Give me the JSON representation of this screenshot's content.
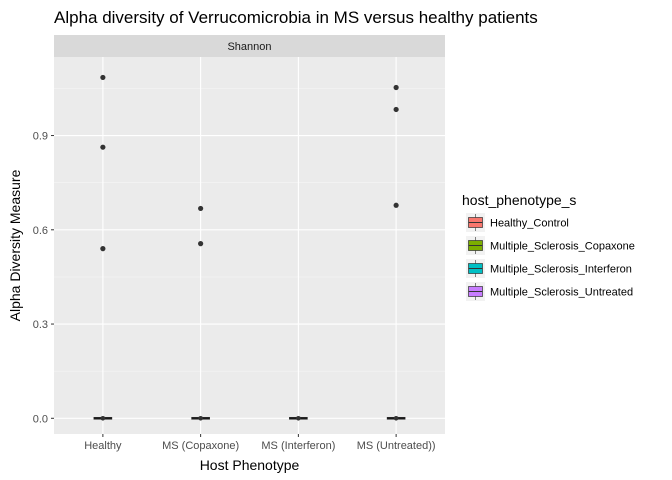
{
  "chart_data": {
    "type": "box",
    "title": "Alpha diversity of Verrucomicrobia in MS versus healthy patients",
    "facet_label": "Shannon",
    "xlabel": "Host Phenotype",
    "ylabel": "Alpha Diversity Measure",
    "categories": [
      "Healthy",
      "MS (Copaxone)",
      "MS (Interferon)",
      "MS (Untreated))"
    ],
    "yticks": [
      0.0,
      0.3,
      0.6,
      0.9
    ],
    "ytick_labels": [
      "0.0",
      "0.3",
      "0.6",
      "0.9"
    ],
    "ylim": [
      -0.05,
      1.15
    ],
    "grid": true,
    "legend": {
      "title": "host_phenotype_s",
      "placement": "right",
      "entries": [
        {
          "label": "Healthy_Control",
          "color": "#F8766D"
        },
        {
          "label": "Multiple_Sclerosis_Copaxone",
          "color": "#7CAE00"
        },
        {
          "label": "Multiple_Sclerosis_Interferon",
          "color": "#00BFC4"
        },
        {
          "label": "Multiple_Sclerosis_Untreated",
          "color": "#C77CFF"
        }
      ]
    },
    "series": [
      {
        "category": "Healthy",
        "color": "#F8766D",
        "median": 0.0,
        "outliers": [
          1.085,
          0.863,
          0.54
        ]
      },
      {
        "category": "MS (Copaxone)",
        "color": "#7CAE00",
        "median": 0.0,
        "outliers": [
          0.668,
          0.556
        ]
      },
      {
        "category": "MS (Interferon)",
        "color": "#00BFC4",
        "median": 0.0,
        "outliers": []
      },
      {
        "category": "MS (Untreated))",
        "color": "#C77CFF",
        "median": 0.0,
        "outliers": [
          1.053,
          0.983,
          0.678
        ]
      }
    ]
  }
}
